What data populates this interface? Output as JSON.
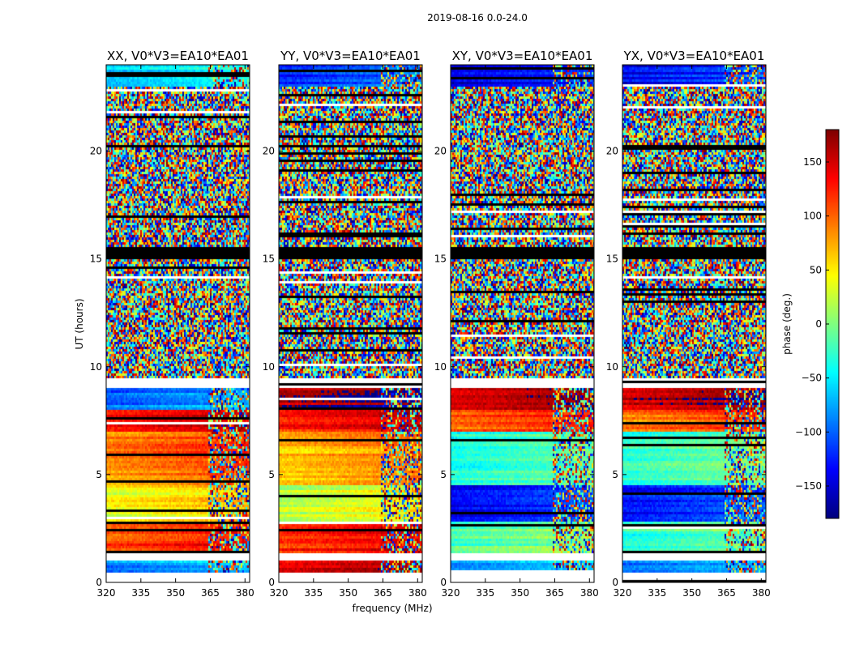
{
  "figure": {
    "suptitle": "2019-08-16 0.0-24.0"
  },
  "chart_data": {
    "type": "heatmap",
    "title": "2019-08-16 0.0-24.0",
    "xlabel": "frequency (MHz)",
    "ylabel": "UT (hours)",
    "xlim": [
      320,
      382
    ],
    "ylim": [
      0,
      24
    ],
    "xticks": [
      320,
      335,
      350,
      365,
      380
    ],
    "yticks": [
      0,
      5,
      10,
      15,
      20
    ],
    "colorbar": {
      "label": "phase (deg.)",
      "range": [
        -180,
        180
      ],
      "ticks": [
        -150,
        -100,
        -50,
        0,
        50,
        100,
        150
      ],
      "tick_labels": [
        "−150",
        "−100",
        "−50",
        "0",
        "50",
        "100",
        "150"
      ],
      "colormap": "jet"
    },
    "noise_band_hours": [
      9.5,
      24
    ],
    "flagged_band_hours": [
      15.0,
      15.5
    ],
    "rfi_region_mhz": [
      364,
      382
    ],
    "panels": [
      {
        "title": "XX, V0*V3=EA10*EA01",
        "lowband_phase_deg": [
          {
            "from": 0.5,
            "to": 1.0,
            "phase": -90
          },
          {
            "from": 1.4,
            "to": 2.8,
            "phase": 110
          },
          {
            "from": 2.8,
            "to": 4.5,
            "phase": 40
          },
          {
            "from": 4.5,
            "to": 7.0,
            "phase": 85
          },
          {
            "from": 7.0,
            "to": 8.0,
            "phase": 140
          },
          {
            "from": 8.0,
            "to": 9.0,
            "phase": -100
          },
          {
            "from": 23.0,
            "to": 24.0,
            "phase": -60
          }
        ]
      },
      {
        "title": "YY, V0*V3=EA10*EA01",
        "lowband_phase_deg": [
          {
            "from": 0.5,
            "to": 1.0,
            "phase": 150
          },
          {
            "from": 1.4,
            "to": 2.8,
            "phase": 120
          },
          {
            "from": 2.8,
            "to": 4.5,
            "phase": 20
          },
          {
            "from": 4.5,
            "to": 7.0,
            "phase": 60
          },
          {
            "from": 7.0,
            "to": 8.0,
            "phase": 120
          },
          {
            "from": 8.0,
            "to": 9.0,
            "phase": 160
          },
          {
            "from": 23.0,
            "to": 24.0,
            "phase": -120
          }
        ]
      },
      {
        "title": "XY, V0*V3=EA10*EA01",
        "lowband_phase_deg": [
          {
            "from": 0.5,
            "to": 1.0,
            "phase": -80
          },
          {
            "from": 1.4,
            "to": 2.8,
            "phase": -20
          },
          {
            "from": 2.8,
            "to": 4.5,
            "phase": -140
          },
          {
            "from": 4.5,
            "to": 7.0,
            "phase": -40
          },
          {
            "from": 7.0,
            "to": 8.0,
            "phase": 100
          },
          {
            "from": 8.0,
            "to": 9.0,
            "phase": 140
          },
          {
            "from": 23.0,
            "to": 24.0,
            "phase": -150
          }
        ]
      },
      {
        "title": "YX, V0*V3=EA10*EA01",
        "lowband_phase_deg": [
          {
            "from": 0.5,
            "to": 1.0,
            "phase": -90
          },
          {
            "from": 1.4,
            "to": 2.8,
            "phase": -30
          },
          {
            "from": 2.8,
            "to": 4.5,
            "phase": -130
          },
          {
            "from": 4.5,
            "to": 7.0,
            "phase": -30
          },
          {
            "from": 7.0,
            "to": 8.0,
            "phase": 90
          },
          {
            "from": 8.0,
            "to": 9.0,
            "phase": 150
          },
          {
            "from": 23.0,
            "to": 24.0,
            "phase": -140
          }
        ]
      }
    ]
  }
}
